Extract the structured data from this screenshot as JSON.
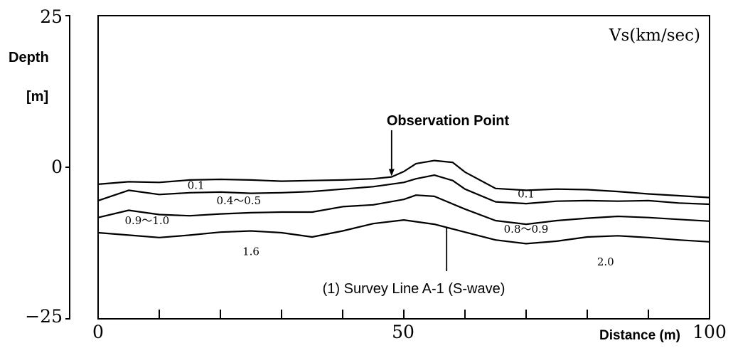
{
  "chart_data": {
    "type": "line",
    "title": "",
    "xlabel": "Distance (m)",
    "ylabel_line1": "Depth",
    "ylabel_line2": "[m]",
    "unit_label": "Vs(km/sec)",
    "xlim": [
      0,
      100
    ],
    "ylim": [
      -25,
      25
    ],
    "x_ticks": [
      "0",
      "50",
      "100"
    ],
    "y_ticks": [
      "25",
      "0",
      "−25"
    ],
    "grid": false,
    "series": [
      {
        "x": [
          0,
          5,
          10,
          15,
          20,
          25,
          30,
          35,
          40,
          45,
          48,
          50,
          52,
          55,
          58,
          60,
          65,
          70,
          75,
          80,
          85,
          90,
          95,
          100
        ],
        "y": [
          -2.8,
          -2.4,
          -2.5,
          -2.1,
          -2.0,
          -2.1,
          -2.3,
          -2.2,
          -2.1,
          -1.9,
          -1.6,
          -0.7,
          0.6,
          1.1,
          0.8,
          -0.8,
          -3.5,
          -3.8,
          -3.6,
          -3.7,
          -4.0,
          -4.4,
          -4.7,
          -5.0
        ]
      },
      {
        "x": [
          0,
          5,
          10,
          15,
          20,
          25,
          30,
          35,
          40,
          45,
          50,
          52,
          55,
          58,
          60,
          65,
          70,
          75,
          80,
          85,
          90,
          95,
          100
        ],
        "y": [
          -5.5,
          -3.8,
          -4.5,
          -4.2,
          -4.1,
          -4.3,
          -4.2,
          -4.0,
          -3.6,
          -3.2,
          -2.5,
          -1.9,
          -1.3,
          -2.2,
          -3.6,
          -5.7,
          -6.0,
          -5.6,
          -5.5,
          -5.6,
          -5.5,
          -5.9,
          -6.1
        ]
      },
      {
        "x": [
          0,
          5,
          10,
          15,
          20,
          25,
          30,
          35,
          40,
          45,
          50,
          52,
          55,
          60,
          65,
          70,
          75,
          80,
          85,
          90,
          95,
          100
        ],
        "y": [
          -8.3,
          -7.1,
          -7.8,
          -8.0,
          -7.7,
          -7.5,
          -7.4,
          -7.4,
          -6.5,
          -6.2,
          -5.3,
          -4.6,
          -4.8,
          -6.9,
          -8.8,
          -9.4,
          -8.8,
          -8.4,
          -8.1,
          -8.3,
          -8.6,
          -8.9
        ]
      },
      {
        "x": [
          0,
          5,
          10,
          15,
          20,
          25,
          30,
          35,
          40,
          45,
          50,
          55,
          60,
          65,
          70,
          75,
          80,
          85,
          90,
          95,
          100
        ],
        "y": [
          -10.8,
          -11.2,
          -11.6,
          -11.2,
          -10.7,
          -10.5,
          -10.8,
          -11.5,
          -10.5,
          -9.3,
          -8.7,
          -9.4,
          -10.7,
          -12.0,
          -12.6,
          -12.2,
          -11.5,
          -11.3,
          -11.6,
          -12.0,
          -12.3
        ]
      }
    ],
    "layer_labels": [
      {
        "text": "0.1",
        "x": 16,
        "y": -3.6
      },
      {
        "text": "0.4〜0.5",
        "x": 23,
        "y": -6.1
      },
      {
        "text": "0.9〜1.0",
        "x": 8,
        "y": -9.4
      },
      {
        "text": "1.6",
        "x": 25,
        "y": -14.5
      },
      {
        "text": "0.1",
        "x": 70,
        "y": -5.0
      },
      {
        "text": "0.8〜0.9",
        "x": 70,
        "y": -10.8
      },
      {
        "text": "2.0",
        "x": 83,
        "y": -16.2
      }
    ],
    "annotations": [
      {
        "text": "Observation Point",
        "x": 48,
        "y": -1.7
      },
      {
        "text": "(1) Survey Line A-1 (S-wave)",
        "x": 57,
        "y": -10.0
      }
    ]
  }
}
